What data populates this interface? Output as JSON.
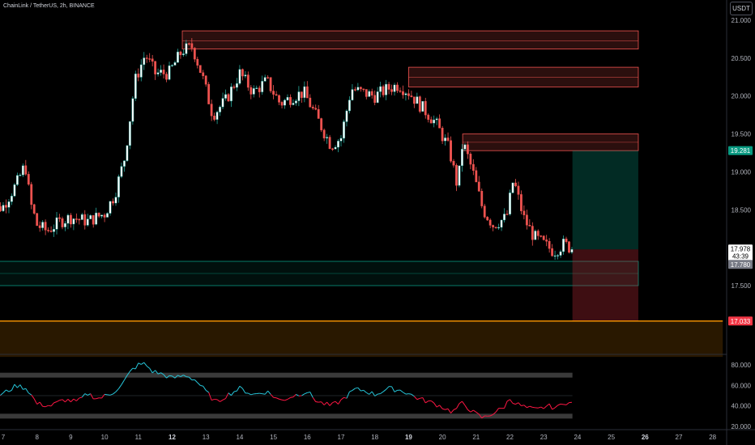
{
  "header": {
    "symbol_line": "ChainLink / TetherUS, 2h, BINANCE"
  },
  "currency_button": "USDT",
  "colors": {
    "up": "#26a69a",
    "down": "#ef5350",
    "supply_zone": "#ef5350",
    "target_zone": "#089981",
    "stop_zone": "#b22833",
    "orange_level": "#ff9800",
    "rsi_above": "#26c6da",
    "rsi_below": "#ff1744",
    "axis_text": "#b2b5be"
  },
  "chart_data": [
    {
      "type": "candlestick",
      "title": "",
      "interval": "2h",
      "x_ticks": [
        "7",
        "8",
        "9",
        "10",
        "11",
        "12",
        "13",
        "14",
        "15",
        "16",
        "17",
        "18",
        "19",
        "20",
        "21",
        "22",
        "23",
        "24",
        "25",
        "26",
        "27",
        "28"
      ],
      "x_ticks_bold": [
        "12",
        "19",
        "26"
      ],
      "y_ticks": [
        21.0,
        20.5,
        20.0,
        19.5,
        19.0,
        18.5,
        18.0,
        17.5
      ],
      "y_tick_labels": [
        "21.000",
        "20.500",
        "20.000",
        "19.500",
        "19.000",
        "18.500",
        "",
        "17.500"
      ],
      "ylim": [
        16.55,
        21.15
      ],
      "grid": false,
      "day_close_path": [
        {
          "day": 6.5,
          "close": 18.45
        },
        {
          "day": 7.0,
          "close": 18.55
        },
        {
          "day": 7.4,
          "close": 18.85
        },
        {
          "day": 7.65,
          "close": 19.1
        },
        {
          "day": 7.8,
          "close": 18.6
        },
        {
          "day": 8.0,
          "close": 18.3
        },
        {
          "day": 8.3,
          "close": 18.22
        },
        {
          "day": 8.7,
          "close": 18.35
        },
        {
          "day": 9.0,
          "close": 18.4
        },
        {
          "day": 9.5,
          "close": 18.35
        },
        {
          "day": 10.0,
          "close": 18.45
        },
        {
          "day": 10.3,
          "close": 18.7
        },
        {
          "day": 10.6,
          "close": 19.2
        },
        {
          "day": 10.9,
          "close": 20.2
        },
        {
          "day": 11.2,
          "close": 20.55
        },
        {
          "day": 11.5,
          "close": 20.3
        },
        {
          "day": 11.9,
          "close": 20.3
        },
        {
          "day": 12.3,
          "close": 20.6
        },
        {
          "day": 12.6,
          "close": 20.65
        },
        {
          "day": 12.9,
          "close": 20.25
        },
        {
          "day": 13.2,
          "close": 19.75
        },
        {
          "day": 13.6,
          "close": 19.95
        },
        {
          "day": 14.0,
          "close": 20.3
        },
        {
          "day": 14.4,
          "close": 20.05
        },
        {
          "day": 14.8,
          "close": 20.2
        },
        {
          "day": 15.2,
          "close": 19.9
        },
        {
          "day": 15.6,
          "close": 20.0
        },
        {
          "day": 15.9,
          "close": 20.05
        },
        {
          "day": 16.3,
          "close": 19.7
        },
        {
          "day": 16.7,
          "close": 19.35
        },
        {
          "day": 17.0,
          "close": 19.45
        },
        {
          "day": 17.3,
          "close": 20.1
        },
        {
          "day": 17.6,
          "close": 20.05
        },
        {
          "day": 18.0,
          "close": 20.0
        },
        {
          "day": 18.4,
          "close": 20.1
        },
        {
          "day": 18.7,
          "close": 20.15
        },
        {
          "day": 19.0,
          "close": 20.05
        },
        {
          "day": 19.4,
          "close": 19.85
        },
        {
          "day": 19.8,
          "close": 19.65
        },
        {
          "day": 20.2,
          "close": 19.3
        },
        {
          "day": 20.45,
          "close": 18.8
        },
        {
          "day": 20.6,
          "close": 19.4
        },
        {
          "day": 20.9,
          "close": 19.0
        },
        {
          "day": 21.2,
          "close": 18.5
        },
        {
          "day": 21.5,
          "close": 18.3
        },
        {
          "day": 21.9,
          "close": 18.4
        },
        {
          "day": 22.1,
          "close": 18.9
        },
        {
          "day": 22.4,
          "close": 18.4
        },
        {
          "day": 22.7,
          "close": 18.15
        },
        {
          "day": 23.0,
          "close": 18.05
        },
        {
          "day": 23.3,
          "close": 17.95
        },
        {
          "day": 23.6,
          "close": 18.05
        },
        {
          "day": 23.85,
          "close": 17.978
        }
      ],
      "zones": [
        {
          "kind": "supply",
          "from_day": 12.3,
          "to_day": 25.8,
          "top": 20.86,
          "bottom": 20.62,
          "mid": 20.73
        },
        {
          "kind": "supply",
          "from_day": 19.0,
          "to_day": 25.8,
          "top": 20.38,
          "bottom": 20.12,
          "mid": 20.25
        },
        {
          "kind": "supply",
          "from_day": 20.6,
          "to_day": 25.8,
          "top": 19.5,
          "bottom": 19.28,
          "mid": 19.39
        },
        {
          "kind": "demand",
          "from_day": 6.5,
          "to_day": 25.8,
          "top": 17.82,
          "bottom": 17.5,
          "mid": 17.66
        },
        {
          "kind": "target",
          "from_day": 23.85,
          "to_day": 25.8,
          "top": 19.281,
          "bottom": 17.978
        },
        {
          "kind": "stop",
          "from_day": 23.85,
          "to_day": 25.8,
          "top": 17.978,
          "bottom": 17.033
        },
        {
          "kind": "orange_band",
          "from_day": 6.5,
          "to_day": 28.3,
          "top": 17.033,
          "bottom": 16.56
        }
      ],
      "price_tags": [
        {
          "label": "19.281",
          "value": 19.281,
          "bg": "#089981",
          "fg": "#ffffff"
        },
        {
          "label": "17.978",
          "value": 17.978,
          "bg": "#ffffff",
          "fg": "#000000",
          "sub": "43:39"
        },
        {
          "label": "17.780",
          "value": 17.78,
          "bg": "#787b86",
          "fg": "#ffffff"
        },
        {
          "label": "17.033",
          "value": 17.033,
          "bg": "#f23645",
          "fg": "#ffffff"
        }
      ]
    },
    {
      "type": "line",
      "title": "",
      "name": "",
      "y_ticks": [
        80,
        60,
        40,
        20
      ],
      "y_tick_labels": [
        "80.000",
        "60.000",
        "40.000",
        "20.000"
      ],
      "ylim": [
        20,
        86
      ],
      "bands": [
        70,
        30
      ],
      "midline": 50,
      "rsi_path": [
        {
          "day": 6.5,
          "value": 45
        },
        {
          "day": 7.0,
          "value": 52
        },
        {
          "day": 7.4,
          "value": 60
        },
        {
          "day": 7.7,
          "value": 57
        },
        {
          "day": 8.0,
          "value": 42
        },
        {
          "day": 8.4,
          "value": 40
        },
        {
          "day": 8.8,
          "value": 46
        },
        {
          "day": 9.2,
          "value": 44
        },
        {
          "day": 9.5,
          "value": 52
        },
        {
          "day": 9.8,
          "value": 47
        },
        {
          "day": 10.2,
          "value": 52
        },
        {
          "day": 10.5,
          "value": 60
        },
        {
          "day": 10.8,
          "value": 75
        },
        {
          "day": 11.0,
          "value": 80
        },
        {
          "day": 11.2,
          "value": 81
        },
        {
          "day": 11.4,
          "value": 74
        },
        {
          "day": 11.7,
          "value": 71
        },
        {
          "day": 12.0,
          "value": 67
        },
        {
          "day": 12.4,
          "value": 70
        },
        {
          "day": 12.7,
          "value": 65
        },
        {
          "day": 13.0,
          "value": 54
        },
        {
          "day": 13.3,
          "value": 43
        },
        {
          "day": 13.6,
          "value": 50
        },
        {
          "day": 14.0,
          "value": 57
        },
        {
          "day": 14.4,
          "value": 51
        },
        {
          "day": 14.8,
          "value": 54
        },
        {
          "day": 15.2,
          "value": 45
        },
        {
          "day": 15.6,
          "value": 50
        },
        {
          "day": 16.0,
          "value": 54
        },
        {
          "day": 16.3,
          "value": 44
        },
        {
          "day": 16.7,
          "value": 40
        },
        {
          "day": 17.0,
          "value": 45
        },
        {
          "day": 17.4,
          "value": 56
        },
        {
          "day": 17.7,
          "value": 55
        },
        {
          "day": 18.0,
          "value": 51
        },
        {
          "day": 18.4,
          "value": 57
        },
        {
          "day": 18.8,
          "value": 55
        },
        {
          "day": 19.0,
          "value": 52
        },
        {
          "day": 19.3,
          "value": 47
        },
        {
          "day": 19.7,
          "value": 43
        },
        {
          "day": 20.0,
          "value": 39
        },
        {
          "day": 20.3,
          "value": 34
        },
        {
          "day": 20.6,
          "value": 43
        },
        {
          "day": 20.9,
          "value": 34
        },
        {
          "day": 21.2,
          "value": 28
        },
        {
          "day": 21.5,
          "value": 33
        },
        {
          "day": 21.8,
          "value": 38
        },
        {
          "day": 22.0,
          "value": 47
        },
        {
          "day": 22.2,
          "value": 42
        },
        {
          "day": 22.5,
          "value": 38
        },
        {
          "day": 22.8,
          "value": 36
        },
        {
          "day": 23.1,
          "value": 40
        },
        {
          "day": 23.4,
          "value": 38
        },
        {
          "day": 23.6,
          "value": 44
        },
        {
          "day": 23.85,
          "value": 42
        }
      ]
    }
  ]
}
